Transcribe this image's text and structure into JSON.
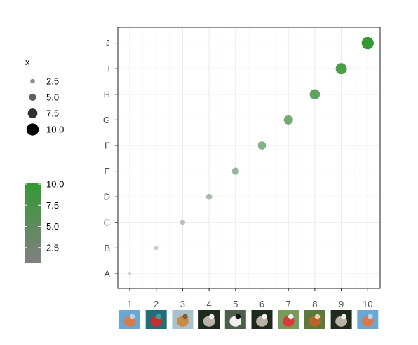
{
  "chart_data": {
    "type": "scatter",
    "x": [
      1,
      2,
      3,
      4,
      5,
      6,
      7,
      8,
      9,
      10
    ],
    "y": [
      "A",
      "B",
      "C",
      "D",
      "E",
      "F",
      "G",
      "H",
      "I",
      "J"
    ],
    "size": [
      1,
      2,
      3,
      4,
      5,
      6,
      7,
      8,
      9,
      10
    ],
    "color": [
      1,
      2,
      3,
      4,
      5,
      6,
      7,
      8,
      9,
      10
    ],
    "x_tick_labels": [
      "1",
      "2",
      "3",
      "4",
      "5",
      "6",
      "7",
      "8",
      "9",
      "10"
    ],
    "y_tick_labels": [
      "A",
      "B",
      "C",
      "D",
      "E",
      "F",
      "G",
      "H",
      "I",
      "J"
    ],
    "xlim": [
      0.5,
      10.5
    ],
    "x_tick_images": [
      "bird",
      "parrot",
      "giraffe",
      "cat",
      "panda",
      "cat",
      "dog",
      "squirrel",
      "cat",
      "bird"
    ],
    "grid": true,
    "legend_position": "left",
    "size_legend": {
      "title": "x",
      "labels": [
        "2.5",
        "5.0",
        "7.5",
        "10.0"
      ],
      "values": [
        2.5,
        5.0,
        7.5,
        10.0
      ]
    },
    "color_legend": {
      "labels": [
        "10.0",
        "7.5",
        "5.0",
        "2.5"
      ],
      "values": [
        10.0,
        7.5,
        5.0,
        2.5
      ],
      "low_color": "#808080",
      "high_color": "#339933"
    },
    "colors": {
      "low": "#808080",
      "high": "#339933",
      "panel_border": "#333333",
      "grid_major": "#ebebeb",
      "grid_minor": "#f5f5f5"
    }
  }
}
